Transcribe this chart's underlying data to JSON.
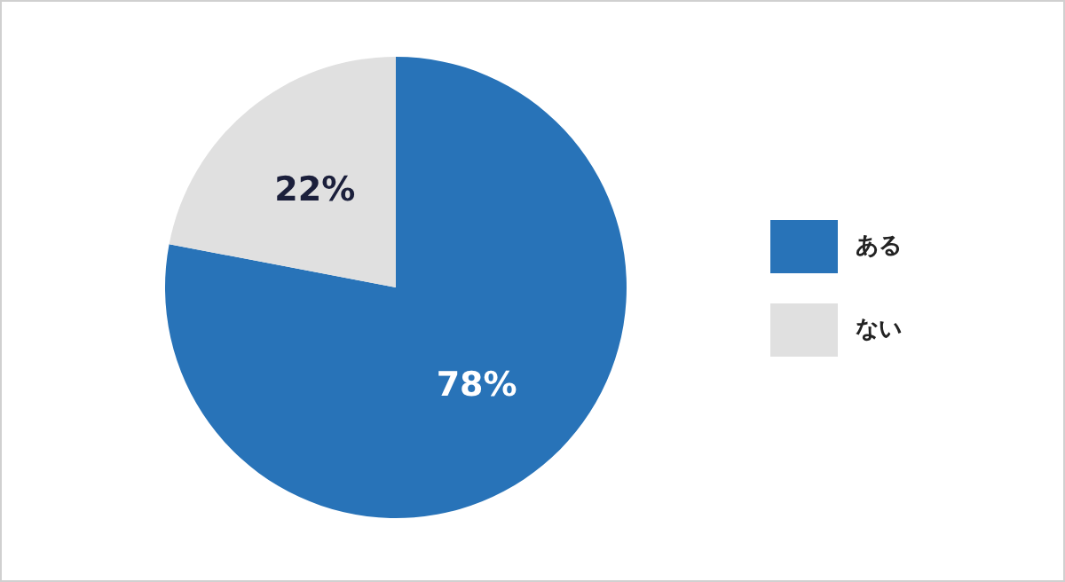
{
  "chart_data": {
    "type": "pie",
    "categories": [
      "ある",
      "ない"
    ],
    "values": [
      78,
      22
    ],
    "colors": [
      "#2873b8",
      "#e0e0e0"
    ],
    "value_labels": [
      "78%",
      "22%"
    ],
    "legend": "right"
  }
}
